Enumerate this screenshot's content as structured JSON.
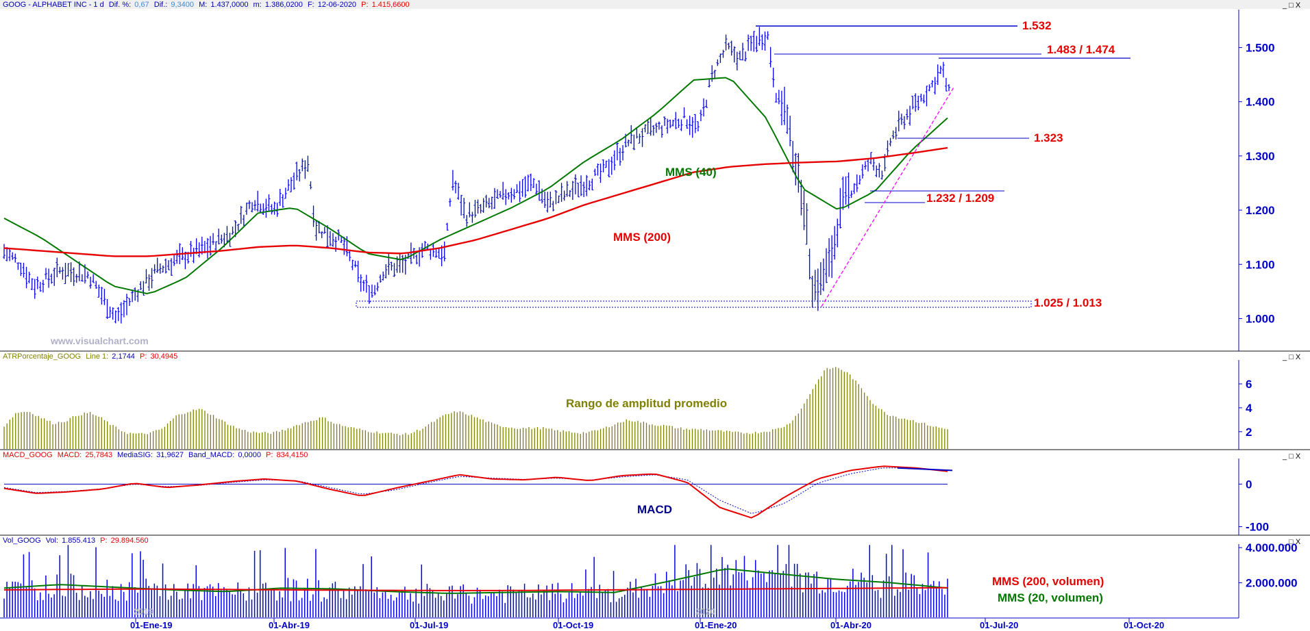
{
  "colors": {
    "blue": "#0000e6",
    "dark_blue": "#00008b",
    "red": "#e60000",
    "green": "#007800",
    "olive": "#808000",
    "magenta": "#ff00ff",
    "label_red": "#e60000"
  },
  "panels": {
    "price": {
      "header": {
        "symbol": "GOOG - ALPHABET INC - 1 d",
        "dif_pct_label": "Dif. %:",
        "dif_pct": "0,67",
        "dif_label": "Dif.:",
        "dif": "9,3400",
        "max_label": "M:",
        "max": "1.437,0000",
        "min_label": "m:",
        "min": "1.386,0200",
        "date_label": "F:",
        "date": "12-06-2020",
        "p_label": "P:",
        "p": "1.415,6600"
      },
      "watermark": "www.visualchart.com",
      "annotations": {
        "mms40": "MMS (40)",
        "mms200": "MMS (200)",
        "l1532": "1.532",
        "l1483": "1.483 / 1.474",
        "l1323": "1.323",
        "l1232": "1.232 / 1.209",
        "l1025": "1.025 / 1.013"
      }
    },
    "atr": {
      "header": {
        "name": "ATRPorcentaje_GOOG",
        "line_label": "Line 1:",
        "line": "2,1744",
        "p_label": "P:",
        "p": "30,4945"
      },
      "annotation": "Rango de amplitud promedio"
    },
    "macd": {
      "header": {
        "name": "MACD_GOOG",
        "macd_label": "MACD:",
        "macd": "25,7843",
        "sig_label": "MediaSIG:",
        "sig": "31,9627",
        "band_label": "Band_MACD:",
        "band": "0,0000",
        "p_label": "P:",
        "p": "834,4150"
      },
      "annotation": "MACD"
    },
    "vol": {
      "header": {
        "name": "Vol_GOOG",
        "vol_label": "Vol:",
        "vol": "1.855.413",
        "p_label": "P:",
        "p": "29.894.560"
      },
      "annotations": {
        "mms200v": "MMS (200, volumen)",
        "mms20v": "MMS (20, volumen)"
      }
    }
  },
  "window_controls": "_ □ X",
  "chart_data": [
    {
      "type": "bar",
      "panel": "price",
      "symbol": "GOOG",
      "ylim": [
        940,
        1570
      ],
      "yticks": [
        "1.000",
        "1.100",
        "1.200",
        "1.300",
        "1.400",
        "1.500"
      ],
      "x_ticks": [
        "01-Ene-19",
        "01-Abr-19",
        "01-Jul-19",
        "01-Oct-19",
        "01-Ene-20",
        "01-Abr-20",
        "01-Jul-20",
        "01-Oct-20"
      ],
      "year_marks": [
        "2019",
        "2020"
      ],
      "series": [
        {
          "name": "MMS (40)",
          "values": [
            1185,
            1150,
            1105,
            1060,
            1045,
            1075,
            1130,
            1195,
            1205,
            1165,
            1120,
            1108,
            1145,
            1175,
            1205,
            1240,
            1290,
            1330,
            1380,
            1440,
            1445,
            1370,
            1240,
            1200,
            1235,
            1310,
            1370
          ]
        },
        {
          "name": "MMS (200)",
          "values": [
            1130,
            1125,
            1120,
            1115,
            1115,
            1120,
            1125,
            1132,
            1135,
            1130,
            1122,
            1120,
            1130,
            1145,
            1165,
            1185,
            1210,
            1230,
            1250,
            1270,
            1280,
            1285,
            1288,
            1290,
            1296,
            1305,
            1315
          ]
        }
      ],
      "levels": [
        {
          "label": "1.532",
          "values": [
            1532
          ]
        },
        {
          "label": "1.483 / 1.474",
          "values": [
            1483,
            1474
          ]
        },
        {
          "label": "1.323",
          "values": [
            1323
          ]
        },
        {
          "label": "1.232 / 1.209",
          "values": [
            1232,
            1209
          ]
        },
        {
          "label": "1.025 / 1.013",
          "values": [
            1025,
            1013
          ]
        }
      ],
      "trendline": {
        "from": [
          1013
        ],
        "to": [
          1420
        ]
      }
    },
    {
      "type": "bar",
      "panel": "atr",
      "series_name": "ATRPorcentaje_GOOG",
      "ylim": [
        0.5,
        8
      ],
      "yticks": [
        "2",
        "4",
        "6"
      ],
      "profile": [
        2.5,
        3.6,
        3.7,
        3.2,
        2.7,
        2.9,
        3.4,
        3.6,
        3.1,
        2.4,
        1.9,
        1.8,
        1.9,
        2.3,
        3.3,
        3.7,
        3.9,
        3.4,
        2.8,
        2.3,
        2.0,
        1.9,
        1.9,
        2.2,
        2.6,
        2.9,
        3.2,
        2.7,
        2.4,
        2.2,
        2.0,
        1.9,
        1.8,
        1.8,
        2.2,
        2.8,
        3.4,
        3.7,
        3.4,
        3.0,
        2.6,
        2.4,
        2.3,
        2.3,
        2.3,
        2.1,
        2.0,
        1.9,
        2.0,
        2.3,
        2.7,
        3.0,
        2.8,
        2.6,
        2.5,
        2.3,
        2.2,
        2.2,
        2.1,
        2.0,
        1.9,
        1.9,
        2.0,
        2.2,
        2.6,
        3.8,
        5.6,
        7.2,
        7.4,
        6.8,
        5.6,
        4.3,
        3.5,
        3.2,
        3.0,
        2.7,
        2.4,
        2.2
      ]
    },
    {
      "type": "line",
      "panel": "macd",
      "ylim": [
        -120,
        60
      ],
      "yticks": [
        "0",
        "-100"
      ],
      "series": [
        {
          "name": "MACD",
          "values": [
            -10,
            -22,
            -18,
            -12,
            2,
            -8,
            -2,
            6,
            12,
            7,
            -12,
            -28,
            -10,
            6,
            22,
            12,
            10,
            16,
            8,
            20,
            24,
            4,
            -55,
            -80,
            -30,
            12,
            32,
            42,
            38,
            30
          ]
        },
        {
          "name": "MediaSIG",
          "values": [
            -8,
            -20,
            -17,
            -11,
            0,
            -6,
            -3,
            4,
            10,
            8,
            -8,
            -24,
            -14,
            3,
            18,
            14,
            11,
            14,
            9,
            17,
            22,
            10,
            -38,
            -70,
            -45,
            2,
            24,
            38,
            38,
            32
          ]
        }
      ]
    },
    {
      "type": "bar",
      "panel": "vol",
      "series_name": "Vol_GOOG",
      "ylim": [
        0,
        4200000
      ],
      "yticks": [
        "2.000.000",
        "4.000.000"
      ],
      "series": [
        {
          "name": "MMS (200, volumen)",
          "values": [
            1600000,
            1620000,
            1640000,
            1640000,
            1620000,
            1600000,
            1580000,
            1570000,
            1560000,
            1560000,
            1580000,
            1600000,
            1620000,
            1640000,
            1660000,
            1680000,
            1700000,
            1720000
          ]
        },
        {
          "name": "MMS (20, volumen)",
          "values": [
            1700000,
            1900000,
            1750000,
            1600000,
            1500000,
            1700000,
            1650000,
            1500000,
            1400000,
            1450000,
            1500000,
            1450000,
            2100000,
            2800000,
            2500000,
            2200000,
            2000000,
            1700000
          ]
        }
      ]
    }
  ]
}
